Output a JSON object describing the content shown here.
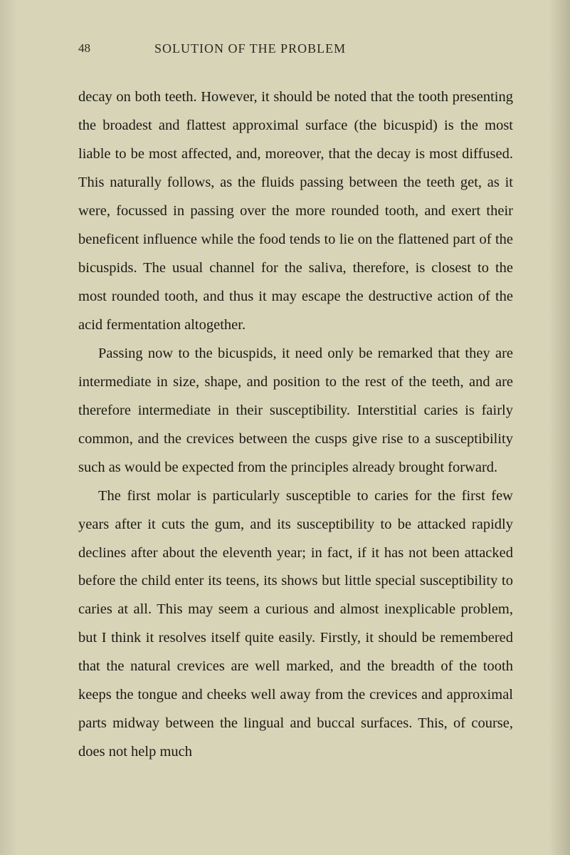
{
  "page": {
    "number": "48",
    "running_title": "SOLUTION OF THE PROBLEM",
    "paragraphs": [
      "decay on both teeth. However, it should be noted that the tooth presenting the broadest and flattest approximal surface (the bicuspid) is the most liable to be most affected, and, moreover, that the decay is most diffused. This naturally follows, as the fluids passing between the teeth get, as it were, focussed in passing over the more rounded tooth, and exert their beneficent influence while the food tends to lie on the flattened part of the bicuspids. The usual channel for the saliva, therefore, is closest to the most rounded tooth, and thus it may escape the destructive action of the acid fermentation altogether.",
      "Passing now to the bicuspids, it need only be remarked that they are intermediate in size, shape, and position to the rest of the teeth, and are therefore intermediate in their susceptibility. Interstitial caries is fairly common, and the crevices between the cusps give rise to a susceptibility such as would be expected from the principles already brought forward.",
      "The first molar is particularly susceptible to caries for the first few years after it cuts the gum, and its susceptibility to be attacked rapidly declines after about the eleventh year; in fact, if it has not been attacked before the child enter its teens, its shows but little special susceptibility to caries at all. This may seem a curious and almost inexplicable problem, but I think it resolves itself quite easily. Firstly, it should be remembered that the natural crevices are well marked, and the breadth of the tooth keeps the tongue and cheeks well away from the crevices and approximal parts midway between the lingual and buccal surfaces. This, of course, does not help much"
    ]
  },
  "style": {
    "background_color": "#d8d4b8",
    "text_color": "#1a1a12",
    "header_color": "#2a2a1f",
    "body_font_size": 20.5,
    "header_font_size": 18,
    "page_number_font_size": 17,
    "line_height": 1.95
  }
}
